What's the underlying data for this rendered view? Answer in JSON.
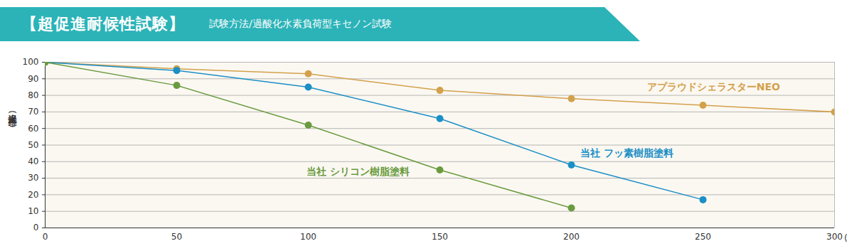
{
  "chart_data": {
    "type": "line",
    "title": "【超促進耐候性試験】",
    "subtitle": "試験方法/過酸化水素負荷型キセノン試験",
    "y_label": "光沢保持率(%)",
    "x_label": "(h)",
    "x": [
      0,
      50,
      100,
      150,
      200,
      250,
      300
    ],
    "series": [
      {
        "name": "アプラウドシェラスターNEO",
        "color": "#d3a14c",
        "values": [
          100,
          96,
          93,
          83,
          78,
          74,
          70
        ]
      },
      {
        "name": "当社 フッ素樹脂塗料",
        "color": "#1b8fc6",
        "values": [
          100,
          95,
          85,
          66,
          38,
          17,
          null
        ]
      },
      {
        "name": "当社 シリコン樹脂塗料",
        "color": "#6a9b3e",
        "values": [
          100,
          86,
          62,
          35,
          12,
          null,
          null
        ]
      }
    ],
    "xlim": [
      0,
      300
    ],
    "xticks": [
      0,
      50,
      100,
      150,
      200,
      250,
      300
    ],
    "ylim": [
      0,
      100
    ],
    "yticks": [
      0,
      10,
      20,
      30,
      40,
      50,
      60,
      70,
      80,
      90,
      100
    ],
    "grid": true,
    "marker": "circle",
    "line_style": "solid"
  }
}
